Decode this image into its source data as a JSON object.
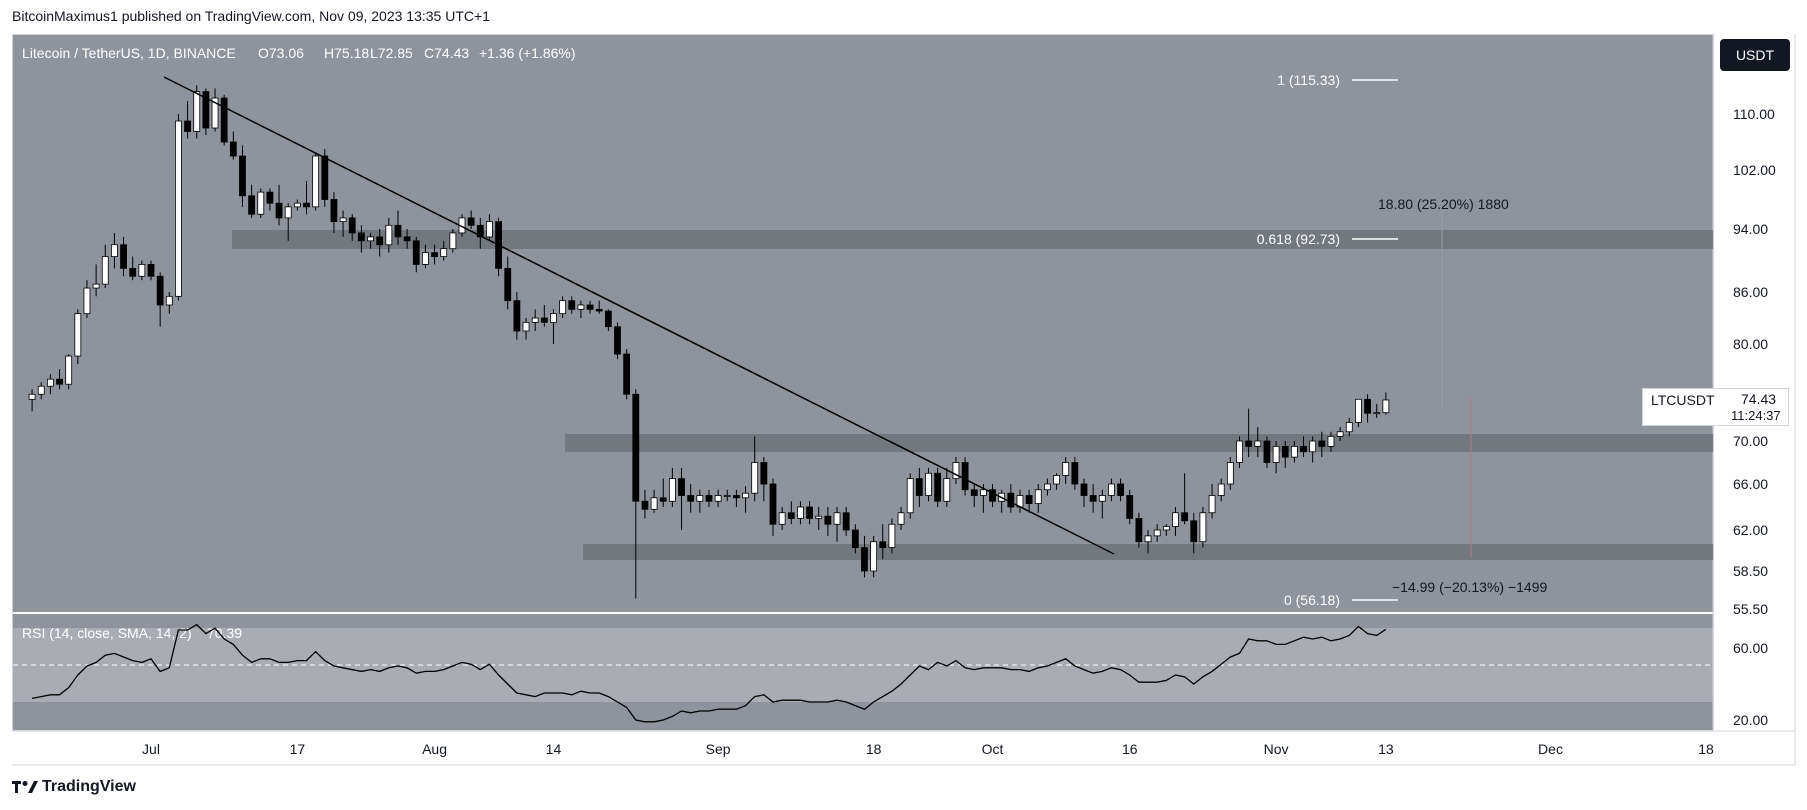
{
  "header": {
    "published_by": "BitcoinMaximus1 published on TradingView.com, Nov 09, 2023 13:35 UTC+1"
  },
  "legend": {
    "pair": "Litecoin / TetherUS, 1D, BINANCE",
    "o_label": "O",
    "o_value": "73.06",
    "h_label": "H",
    "h_value": "75.18",
    "l_label": "L",
    "l_value": "72.85",
    "c_label": "C",
    "c_value": "74.43",
    "change": "+1.36 (+1.86%)"
  },
  "currency_button": "USDT",
  "price_label": {
    "symbol": "LTCUSDT",
    "value": "74.43",
    "countdown": "11:24:37"
  },
  "annotations": {
    "fib_1": "1 (115.33)",
    "fib_0618": "0.618 (92.73)",
    "fib_0": "0 (56.18)",
    "measure_up": "18.80 (25.20%) 1880",
    "measure_down": "−14.99 (−20.13%) −1499"
  },
  "rsi": {
    "label": "RSI (14, close, SMA, 14, 2)",
    "value": "70.39"
  },
  "footer": {
    "brand": "TradingView"
  },
  "colors": {
    "plot_bg": "#8f939b",
    "rsi_band": "#a9acb3",
    "zone": "#6f737a",
    "candle_up": "#ffffff",
    "candle_down": "#000000",
    "trendline": "#000000"
  },
  "chart_data": {
    "type": "candlestick",
    "symbol": "LTCUSDT",
    "interval": "1D",
    "y_tick_labels": [
      "110.00",
      "102.00",
      "94.00",
      "86.00",
      "80.00",
      "70.00",
      "66.00",
      "62.00",
      "58.50",
      "55.50"
    ],
    "y_ticks": [
      110,
      102,
      94,
      86,
      80,
      70,
      66,
      62,
      58.5,
      55.5
    ],
    "rsi_ticks": [
      60,
      20
    ],
    "rsi_tick_labels": [
      "60.00",
      "20.00"
    ],
    "x_ticks": [
      "Jul",
      "17",
      "Aug",
      "14",
      "Sep",
      "18",
      "Oct",
      "16",
      "Nov",
      "13",
      "Dec",
      "18"
    ],
    "x_tick_dates": [
      "2023-07-01",
      "2023-07-17",
      "2023-08-01",
      "2023-08-14",
      "2023-09-01",
      "2023-09-18",
      "2023-10-01",
      "2023-10-16",
      "2023-11-01",
      "2023-11-13",
      "2023-12-01",
      "2023-12-18"
    ],
    "first_candle_date": "2023-06-18",
    "candles_ohlc": [
      [
        74.5,
        75.5,
        73.2,
        75.0
      ],
      [
        75.0,
        76.2,
        74.5,
        75.8
      ],
      [
        75.8,
        77.0,
        75.0,
        76.5
      ],
      [
        76.5,
        77.5,
        75.5,
        76.0
      ],
      [
        76.0,
        79.0,
        75.5,
        78.8
      ],
      [
        78.8,
        84.0,
        78.0,
        83.5
      ],
      [
        83.5,
        87.5,
        83.0,
        86.5
      ],
      [
        86.5,
        89.5,
        85.5,
        87.0
      ],
      [
        87.0,
        92.0,
        86.5,
        90.5
      ],
      [
        90.5,
        93.5,
        89.0,
        92.0
      ],
      [
        92.0,
        93.0,
        88.0,
        89.0
      ],
      [
        89.0,
        90.5,
        87.5,
        88.0
      ],
      [
        88.0,
        90.0,
        87.5,
        89.5
      ],
      [
        89.5,
        90.0,
        87.5,
        88.0
      ],
      [
        88.0,
        88.5,
        82.0,
        84.5
      ],
      [
        84.5,
        86.0,
        83.5,
        85.5
      ],
      [
        85.5,
        110.0,
        85.0,
        109.0
      ],
      [
        109.0,
        112.0,
        106.5,
        107.5
      ],
      [
        107.5,
        114.5,
        106.5,
        113.5
      ],
      [
        113.5,
        114.0,
        107.0,
        108.0
      ],
      [
        108.0,
        114.0,
        107.5,
        112.5
      ],
      [
        112.5,
        113.0,
        105.5,
        106.0
      ],
      [
        106.0,
        107.5,
        103.5,
        104.0
      ],
      [
        104.0,
        105.5,
        97.0,
        98.5
      ],
      [
        98.5,
        100.0,
        95.5,
        96.0
      ],
      [
        96.0,
        99.5,
        95.5,
        99.0
      ],
      [
        99.0,
        99.5,
        96.5,
        97.5
      ],
      [
        97.5,
        100.0,
        94.5,
        95.5
      ],
      [
        95.5,
        97.5,
        92.5,
        97.0
      ],
      [
        97.0,
        98.0,
        96.5,
        97.5
      ],
      [
        97.5,
        100.5,
        96.0,
        97.0
      ],
      [
        97.0,
        104.5,
        96.5,
        104.0
      ],
      [
        104.0,
        105.0,
        97.0,
        98.0
      ],
      [
        98.0,
        99.0,
        93.5,
        95.0
      ],
      [
        95.0,
        96.5,
        93.0,
        95.5
      ],
      [
        95.5,
        96.0,
        92.5,
        93.5
      ],
      [
        93.5,
        94.5,
        91.0,
        92.5
      ],
      [
        92.5,
        93.5,
        91.5,
        93.0
      ],
      [
        93.0,
        94.0,
        90.5,
        92.0
      ],
      [
        92.0,
        95.5,
        91.0,
        94.5
      ],
      [
        94.5,
        96.5,
        92.0,
        93.0
      ],
      [
        93.0,
        94.0,
        91.5,
        92.5
      ],
      [
        92.5,
        93.0,
        88.5,
        89.5
      ],
      [
        89.5,
        92.0,
        89.0,
        91.0
      ],
      [
        91.0,
        92.0,
        89.5,
        90.5
      ],
      [
        90.5,
        92.5,
        90.0,
        91.5
      ],
      [
        91.5,
        94.0,
        91.0,
        93.5
      ],
      [
        93.5,
        96.0,
        93.0,
        95.5
      ],
      [
        95.5,
        96.5,
        94.0,
        94.5
      ],
      [
        94.5,
        95.5,
        91.5,
        93.0
      ],
      [
        93.0,
        96.0,
        92.5,
        95.0
      ],
      [
        95.0,
        95.5,
        88.0,
        89.0
      ],
      [
        89.0,
        90.5,
        84.0,
        85.0
      ],
      [
        85.0,
        86.0,
        80.5,
        81.5
      ],
      [
        81.5,
        83.0,
        80.5,
        82.5
      ],
      [
        82.5,
        84.0,
        81.5,
        83.0
      ],
      [
        83.0,
        84.5,
        82.0,
        82.5
      ],
      [
        82.5,
        84.0,
        80.0,
        83.5
      ],
      [
        83.5,
        85.5,
        83.0,
        85.0
      ],
      [
        85.0,
        85.5,
        83.5,
        84.0
      ],
      [
        84.0,
        85.0,
        83.0,
        84.5
      ],
      [
        84.5,
        85.0,
        83.5,
        84.0
      ],
      [
        84.0,
        85.0,
        83.5,
        83.8
      ],
      [
        83.8,
        84.0,
        81.5,
        82.0
      ],
      [
        82.0,
        82.5,
        78.5,
        79.0
      ],
      [
        79.0,
        79.5,
        74.5,
        75.0
      ],
      [
        75.0,
        75.5,
        56.3,
        64.5
      ],
      [
        64.5,
        65.5,
        63.0,
        63.8
      ],
      [
        63.8,
        65.5,
        63.5,
        64.8
      ],
      [
        64.8,
        66.5,
        64.0,
        64.5
      ],
      [
        64.5,
        67.5,
        64.0,
        66.5
      ],
      [
        66.5,
        67.5,
        62.0,
        65.0
      ],
      [
        65.0,
        66.0,
        63.5,
        64.5
      ],
      [
        64.5,
        65.5,
        63.5,
        65.0
      ],
      [
        65.0,
        65.5,
        64.0,
        64.5
      ],
      [
        64.5,
        65.5,
        64.0,
        65.0
      ],
      [
        65.0,
        65.5,
        64.5,
        65.0
      ],
      [
        65.0,
        65.5,
        64.0,
        64.8
      ],
      [
        64.8,
        65.8,
        63.5,
        65.2
      ],
      [
        65.2,
        70.5,
        64.5,
        68.0
      ],
      [
        68.0,
        68.5,
        64.5,
        66.0
      ],
      [
        66.0,
        66.5,
        61.5,
        62.5
      ],
      [
        62.5,
        64.0,
        62.0,
        63.5
      ],
      [
        63.5,
        64.5,
        62.5,
        63.0
      ],
      [
        63.0,
        64.5,
        62.5,
        64.0
      ],
      [
        64.0,
        64.5,
        62.5,
        63.0
      ],
      [
        63.0,
        64.0,
        62.0,
        63.2
      ],
      [
        63.2,
        64.0,
        61.5,
        62.5
      ],
      [
        62.5,
        64.0,
        61.0,
        63.5
      ],
      [
        63.5,
        64.0,
        61.5,
        62.0
      ],
      [
        62.0,
        62.5,
        60.0,
        60.5
      ],
      [
        60.5,
        61.5,
        58.0,
        58.5
      ],
      [
        58.5,
        61.5,
        58.0,
        61.0
      ],
      [
        61.0,
        62.5,
        59.5,
        60.5
      ],
      [
        60.5,
        63.0,
        60.0,
        62.5
      ],
      [
        62.5,
        64.0,
        62.0,
        63.5
      ],
      [
        63.5,
        67.0,
        63.0,
        66.5
      ],
      [
        66.5,
        67.5,
        64.0,
        65.0
      ],
      [
        65.0,
        67.5,
        64.5,
        67.0
      ],
      [
        67.0,
        67.5,
        64.0,
        64.5
      ],
      [
        64.5,
        67.5,
        64.0,
        66.5
      ],
      [
        66.5,
        68.5,
        66.0,
        68.0
      ],
      [
        68.0,
        68.5,
        65.0,
        65.5
      ],
      [
        65.5,
        66.0,
        64.0,
        65.0
      ],
      [
        65.0,
        66.0,
        63.5,
        65.5
      ],
      [
        65.5,
        66.0,
        64.0,
        64.5
      ],
      [
        64.5,
        65.5,
        63.5,
        65.2
      ],
      [
        65.2,
        66.0,
        63.5,
        64.0
      ],
      [
        64.0,
        65.5,
        63.5,
        65.0
      ],
      [
        65.0,
        65.5,
        63.5,
        64.3
      ],
      [
        64.3,
        66.0,
        63.5,
        65.5
      ],
      [
        65.5,
        66.5,
        65.0,
        66.0
      ],
      [
        66.0,
        67.0,
        65.5,
        66.8
      ],
      [
        66.8,
        68.5,
        66.0,
        68.0
      ],
      [
        68.0,
        68.5,
        65.5,
        66.0
      ],
      [
        66.0,
        66.5,
        64.0,
        65.0
      ],
      [
        65.0,
        66.0,
        63.5,
        64.5
      ],
      [
        64.5,
        65.5,
        63.0,
        65.0
      ],
      [
        65.0,
        66.5,
        64.5,
        66.0
      ],
      [
        66.0,
        66.5,
        64.5,
        65.0
      ],
      [
        65.0,
        65.5,
        62.5,
        63.0
      ],
      [
        63.0,
        63.5,
        60.5,
        61.0
      ],
      [
        61.0,
        62.0,
        60.0,
        61.5
      ],
      [
        61.5,
        62.5,
        61.0,
        62.0
      ],
      [
        62.0,
        62.5,
        61.5,
        62.3
      ],
      [
        62.3,
        64.0,
        61.5,
        63.5
      ],
      [
        63.5,
        67.0,
        62.5,
        62.8
      ],
      [
        62.8,
        63.5,
        60.0,
        61.0
      ],
      [
        61.0,
        64.0,
        60.5,
        63.5
      ],
      [
        63.5,
        66.0,
        63.0,
        65.0
      ],
      [
        65.0,
        66.5,
        64.5,
        66.0
      ],
      [
        66.0,
        68.5,
        65.5,
        68.0
      ],
      [
        68.0,
        70.5,
        67.5,
        70.0
      ],
      [
        70.0,
        73.5,
        68.5,
        69.5
      ],
      [
        69.5,
        71.5,
        68.5,
        70.0
      ],
      [
        70.0,
        70.5,
        67.5,
        68.0
      ],
      [
        68.0,
        70.0,
        67.0,
        69.5
      ],
      [
        69.5,
        70.0,
        67.5,
        68.5
      ],
      [
        68.5,
        70.0,
        68.0,
        69.5
      ],
      [
        69.5,
        70.5,
        68.5,
        69.0
      ],
      [
        69.0,
        70.5,
        68.0,
        70.0
      ],
      [
        70.0,
        71.0,
        68.5,
        69.5
      ],
      [
        69.5,
        71.0,
        69.0,
        70.5
      ],
      [
        70.5,
        71.5,
        70.0,
        71.0
      ],
      [
        71.0,
        72.5,
        70.5,
        72.0
      ],
      [
        72.0,
        74.5,
        71.5,
        74.5
      ],
      [
        74.5,
        75.0,
        72.0,
        73.0
      ],
      [
        73.0,
        74.0,
        72.5,
        73.06
      ],
      [
        73.06,
        75.18,
        72.85,
        74.43
      ]
    ],
    "rsi": [
      32,
      33,
      34,
      34,
      38,
      45,
      50,
      52,
      56,
      57,
      55,
      53,
      52,
      54,
      47,
      49,
      70,
      70,
      73,
      68,
      71,
      65,
      62,
      56,
      52,
      54,
      54,
      52,
      52,
      53,
      53,
      58,
      53,
      50,
      49,
      48,
      47,
      48,
      47,
      49,
      50,
      49,
      46,
      47,
      47,
      48,
      50,
      52,
      51,
      48,
      51,
      45,
      40,
      35,
      34,
      33,
      35,
      35,
      35,
      34,
      36,
      35,
      35,
      33,
      30,
      27,
      20,
      19,
      19,
      20,
      22,
      25,
      24,
      25,
      25,
      26,
      26,
      26,
      28,
      33,
      34,
      30,
      31,
      31,
      31,
      30,
      30,
      30,
      31,
      30,
      28,
      26,
      30,
      33,
      36,
      40,
      45,
      50,
      48,
      52,
      50,
      53,
      49,
      48,
      49,
      49,
      49,
      48,
      48,
      47,
      49,
      50,
      52,
      54,
      50,
      48,
      46,
      47,
      49,
      48,
      45,
      41,
      41,
      41,
      42,
      45,
      44,
      40,
      44,
      47,
      51,
      55,
      57,
      65,
      64,
      64,
      62,
      62,
      64,
      66,
      65,
      66,
      64,
      65,
      67,
      72,
      68,
      67,
      70.39
    ]
  }
}
